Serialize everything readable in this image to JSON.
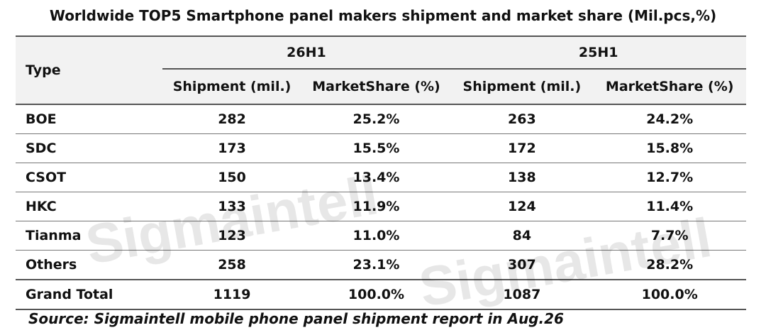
{
  "title": "Worldwide TOP5 Smartphone panel makers shipment and market share (Mil.pcs,%)",
  "watermark": "Sigmaintell",
  "table": {
    "type_header": "Type",
    "groups": [
      "26H1",
      "25H1"
    ],
    "subheaders": [
      "Shipment (mil.)",
      "MarketShare (%)",
      "Shipment (mil.)",
      "MarketShare (%)"
    ],
    "rows": [
      {
        "type": "BOE",
        "cells": [
          "282",
          "25.2%",
          "263",
          "24.2%"
        ]
      },
      {
        "type": "SDC",
        "cells": [
          "173",
          "15.5%",
          "172",
          "15.8%"
        ]
      },
      {
        "type": "CSOT",
        "cells": [
          "150",
          "13.4%",
          "138",
          "12.7%"
        ]
      },
      {
        "type": "HKC",
        "cells": [
          "133",
          "11.9%",
          "124",
          "11.4%"
        ]
      },
      {
        "type": "Tianma",
        "cells": [
          "123",
          "11.0%",
          "84",
          "7.7%"
        ]
      },
      {
        "type": "Others",
        "cells": [
          "258",
          "23.1%",
          "307",
          "28.2%"
        ]
      },
      {
        "type": "Grand Total",
        "cells": [
          "1119",
          "100.0%",
          "1087",
          "100.0%"
        ]
      }
    ]
  },
  "source": "Source: Sigmaintell mobile phone panel shipment report in Aug.26",
  "chart_data": {
    "type": "table",
    "title": "Worldwide TOP5 Smartphone panel makers shipment and market share (Mil.pcs,%)",
    "columns": [
      "Type",
      "26H1 Shipment (mil.)",
      "26H1 MarketShare (%)",
      "25H1 Shipment (mil.)",
      "25H1 MarketShare (%)"
    ],
    "categories": [
      "BOE",
      "SDC",
      "CSOT",
      "HKC",
      "Tianma",
      "Others",
      "Grand Total"
    ],
    "series": [
      {
        "name": "26H1 Shipment (mil.)",
        "values": [
          282,
          173,
          150,
          133,
          123,
          258,
          1119
        ]
      },
      {
        "name": "26H1 MarketShare (%)",
        "values": [
          25.2,
          15.5,
          13.4,
          11.9,
          11.0,
          23.1,
          100.0
        ]
      },
      {
        "name": "25H1 Shipment (mil.)",
        "values": [
          263,
          172,
          138,
          124,
          84,
          307,
          1087
        ]
      },
      {
        "name": "25H1 MarketShare (%)",
        "values": [
          24.2,
          15.8,
          12.7,
          11.4,
          7.7,
          28.2,
          100.0
        ]
      }
    ]
  }
}
